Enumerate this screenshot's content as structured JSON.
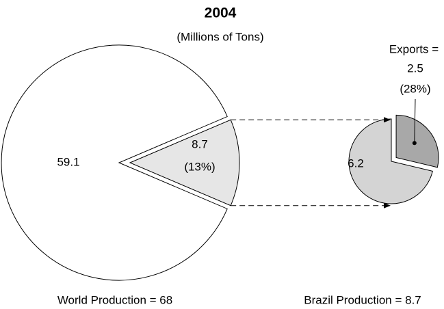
{
  "chart_data": [
    {
      "type": "pie",
      "title": "2004",
      "subtitle": "(Millions of Tons)",
      "caption": "World Production = 68",
      "values": [
        59.1,
        8.7
      ],
      "colors": [
        "#ffffff",
        "#e6e6e6"
      ],
      "annotations": [
        "(13%)"
      ]
    },
    {
      "type": "pie",
      "caption": "Brazil Production = 8.7",
      "categories": [
        null,
        "Exports ="
      ],
      "values": [
        6.2,
        2.5
      ],
      "colors": [
        "#d4d4d4",
        "#a8a8a8"
      ],
      "annotations": [
        "(28%)"
      ]
    }
  ]
}
